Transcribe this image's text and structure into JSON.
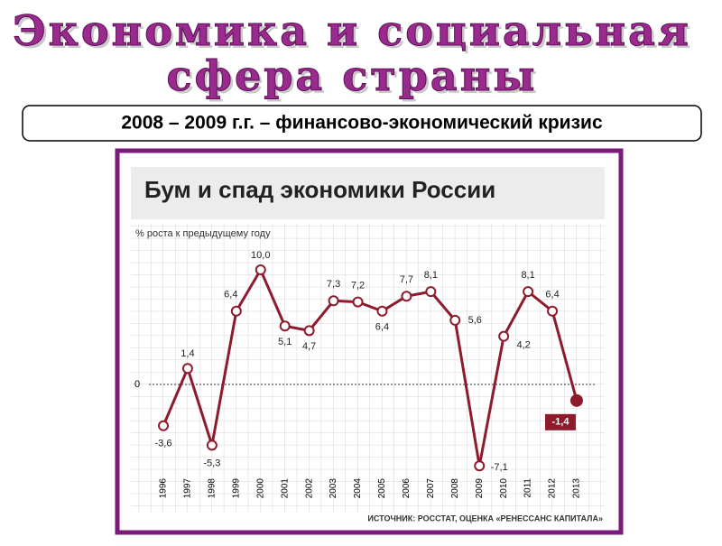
{
  "slide": {
    "title_lines": [
      "Экономика и социальная",
      "сфера страны"
    ],
    "subtitle": "2008 – 2009 г.г. – финансово-экономический кризис"
  },
  "chart_data": {
    "type": "line",
    "title": "Бум и спад экономики России",
    "y_label": "% роста к предыдущему году",
    "source": "ИСТОЧНИК: РОССТАТ, ОЦЕНКА «РЕНЕССАНС КАПИТАЛА»",
    "categories": [
      "1996",
      "1997",
      "1998",
      "1999",
      "2000",
      "2001",
      "2002",
      "2003",
      "2004",
      "2005",
      "2006",
      "2007",
      "2008",
      "2009",
      "2010",
      "2011",
      "2012",
      "2013"
    ],
    "values": [
      -3.6,
      1.4,
      -5.3,
      6.4,
      10.0,
      5.1,
      4.7,
      7.3,
      7.2,
      6.4,
      7.7,
      8.1,
      5.6,
      -7.1,
      4.2,
      8.1,
      6.4,
      -1.4
    ],
    "value_labels": [
      "-3,6",
      "1,4",
      "-5,3",
      "6,4",
      "10,0",
      "5,1",
      "4,7",
      "7,3",
      "7,2",
      "6,4",
      "7,7",
      "8,1",
      "5,6",
      "-7,1",
      "4,2",
      "8,1",
      "6,4",
      "-1,4"
    ],
    "color": "#8e1b2c",
    "ylim": [
      -8.5,
      12.5
    ],
    "yticks": [
      0
    ]
  }
}
